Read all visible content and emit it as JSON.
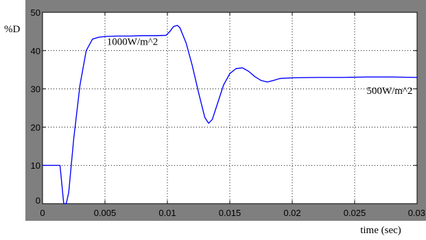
{
  "chart_data": {
    "type": "line",
    "title": "",
    "xlabel": "time (sec)",
    "ylabel": "%D",
    "xlim": [
      0,
      0.03
    ],
    "ylim": [
      0,
      50
    ],
    "xticks": [
      0,
      0.005,
      0.01,
      0.015,
      0.02,
      0.025,
      0.03
    ],
    "xtick_labels": [
      "0",
      "0.005",
      "0.01",
      "0.015",
      "0.02",
      "0.025",
      "0.03"
    ],
    "yticks": [
      0,
      10,
      20,
      30,
      40,
      50
    ],
    "ytick_labels": [
      "0",
      "10",
      "20",
      "30",
      "40",
      "50"
    ],
    "grid": true,
    "grid_style": "dotted",
    "frame_color": "#7f7f7f",
    "plot_background": "#ffffff",
    "series": [
      {
        "color": "#0000ff",
        "x": [
          0,
          0.0014,
          0.0017,
          0.0019,
          0.0021,
          0.0025,
          0.003,
          0.0035,
          0.004,
          0.0045,
          0.005,
          0.006,
          0.007,
          0.008,
          0.009,
          0.0099,
          0.0102,
          0.0105,
          0.0108,
          0.011,
          0.0115,
          0.012,
          0.0125,
          0.013,
          0.0133,
          0.0136,
          0.014,
          0.0145,
          0.015,
          0.0155,
          0.016,
          0.0165,
          0.017,
          0.0175,
          0.018,
          0.0185,
          0.019,
          0.02,
          0.022,
          0.024,
          0.026,
          0.028,
          0.03
        ],
        "y": [
          10,
          10,
          0,
          0,
          3,
          17,
          31,
          40,
          43,
          43.5,
          43.7,
          43.8,
          43.8,
          43.9,
          43.9,
          44,
          45,
          46.3,
          46.6,
          46,
          42,
          36,
          29,
          22.5,
          21,
          22,
          26,
          31,
          34,
          35.3,
          35.5,
          34.6,
          33.2,
          32.2,
          31.8,
          32.2,
          32.7,
          32.9,
          33,
          33,
          33.1,
          33.1,
          33
        ]
      }
    ],
    "annotations": [
      {
        "text": "1000W/m^2",
        "x": 0.0072,
        "y": 41.5
      },
      {
        "text": "500W/m^2",
        "x": 0.0278,
        "y": 28.7
      }
    ]
  }
}
